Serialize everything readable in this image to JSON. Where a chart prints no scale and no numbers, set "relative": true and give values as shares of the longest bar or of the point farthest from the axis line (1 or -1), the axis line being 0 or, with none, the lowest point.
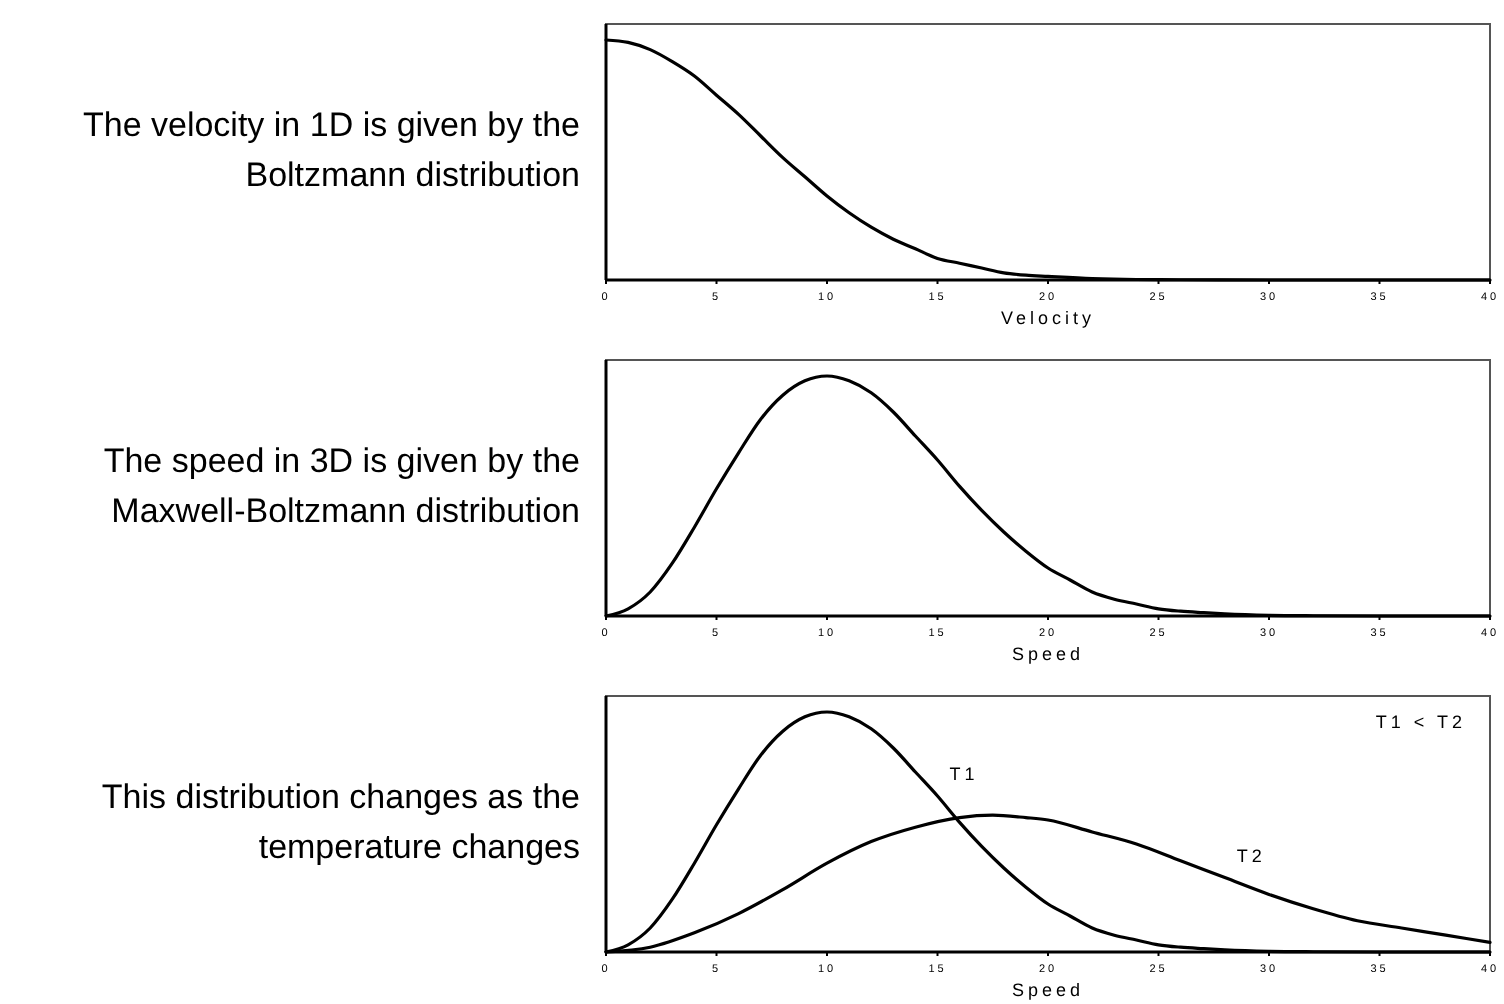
{
  "chart_data": [
    {
      "type": "line",
      "title": "The velocity in 1D is given by the Boltzmann distribution",
      "xlabel": "Velocity",
      "relative": true,
      "xlim": [
        0,
        40
      ],
      "xticks": [
        0,
        5,
        10,
        15,
        20,
        25,
        30,
        35,
        40
      ],
      "series": [
        {
          "color": "#000000",
          "x": [
            0,
            1,
            2,
            3,
            4,
            5,
            6,
            7,
            8,
            9,
            10,
            11,
            12,
            13,
            14,
            15,
            16,
            17,
            18,
            19,
            20,
            22,
            24,
            26,
            30,
            35,
            40
          ],
          "values": [
            1,
            0.99,
            0.96,
            0.91,
            0.85,
            0.77,
            0.69,
            0.6,
            0.51,
            0.43,
            0.35,
            0.28,
            0.22,
            0.17,
            0.13,
            0.09,
            0.07,
            0.05,
            0.03,
            0.02,
            0.015,
            0.006,
            0.002,
            0.001,
            0,
            0,
            0
          ]
        }
      ]
    },
    {
      "type": "line",
      "title": "The speed in 3D is given by the Maxwell-Boltzmann distribution",
      "xlabel": "Speed",
      "relative": true,
      "xlim": [
        0,
        40
      ],
      "xticks": [
        0,
        5,
        10,
        15,
        20,
        25,
        30,
        35,
        40
      ],
      "series": [
        {
          "color": "#000000",
          "x": [
            0,
            1,
            2,
            3,
            4,
            5,
            6,
            7,
            8,
            9,
            10,
            11,
            12,
            13,
            14,
            15,
            16,
            17,
            18,
            19,
            20,
            21,
            22,
            23,
            24,
            25,
            26,
            27,
            28,
            30,
            32,
            35,
            40
          ],
          "values": [
            0,
            0.03,
            0.1,
            0.22,
            0.37,
            0.53,
            0.68,
            0.82,
            0.92,
            0.98,
            1,
            0.98,
            0.93,
            0.85,
            0.75,
            0.65,
            0.54,
            0.44,
            0.35,
            0.27,
            0.2,
            0.15,
            0.1,
            0.07,
            0.05,
            0.03,
            0.02,
            0.014,
            0.009,
            0.003,
            0.001,
            0,
            0
          ]
        }
      ]
    },
    {
      "type": "line",
      "xlabel": "Speed",
      "title": "This distribution changes as the temperature changes",
      "relative": true,
      "xlim": [
        0,
        40
      ],
      "xticks": [
        0,
        5,
        10,
        15,
        20,
        25,
        30,
        35,
        40
      ],
      "annotations": [
        "T1 < T2"
      ],
      "series": [
        {
          "name": "T1",
          "color": "#000000",
          "x": [
            0,
            1,
            2,
            3,
            4,
            5,
            6,
            7,
            8,
            9,
            10,
            11,
            12,
            13,
            14,
            15,
            16,
            17,
            18,
            19,
            20,
            21,
            22,
            23,
            24,
            25,
            26,
            27,
            28,
            30,
            32,
            35,
            40
          ],
          "values": [
            0,
            0.03,
            0.1,
            0.22,
            0.37,
            0.53,
            0.68,
            0.82,
            0.92,
            0.98,
            1,
            0.98,
            0.93,
            0.85,
            0.75,
            0.65,
            0.54,
            0.44,
            0.35,
            0.27,
            0.2,
            0.15,
            0.1,
            0.07,
            0.05,
            0.03,
            0.02,
            0.014,
            0.009,
            0.003,
            0.001,
            0,
            0
          ]
        },
        {
          "name": "T2",
          "color": "#000000",
          "x": [
            0,
            2,
            4,
            6,
            8,
            10,
            12,
            14,
            16,
            17.5,
            19,
            20,
            22,
            24,
            26,
            28,
            30,
            32,
            34,
            36,
            38,
            40
          ],
          "values": [
            0,
            0.02,
            0.08,
            0.16,
            0.26,
            0.37,
            0.46,
            0.52,
            0.56,
            0.57,
            0.56,
            0.55,
            0.5,
            0.45,
            0.38,
            0.31,
            0.24,
            0.18,
            0.13,
            0.1,
            0.07,
            0.04
          ]
        }
      ]
    }
  ]
}
